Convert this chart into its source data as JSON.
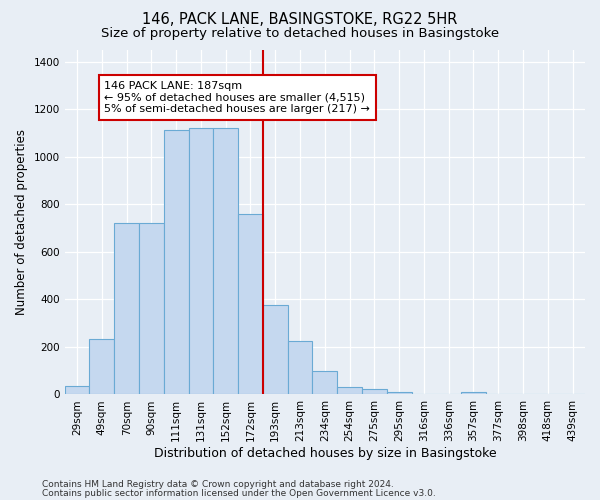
{
  "title": "146, PACK LANE, BASINGSTOKE, RG22 5HR",
  "subtitle": "Size of property relative to detached houses in Basingstoke",
  "xlabel": "Distribution of detached houses by size in Basingstoke",
  "ylabel": "Number of detached properties",
  "bar_labels": [
    "29sqm",
    "49sqm",
    "70sqm",
    "90sqm",
    "111sqm",
    "131sqm",
    "152sqm",
    "172sqm",
    "193sqm",
    "213sqm",
    "234sqm",
    "254sqm",
    "275sqm",
    "295sqm",
    "316sqm",
    "336sqm",
    "357sqm",
    "377sqm",
    "398sqm",
    "418sqm",
    "439sqm"
  ],
  "hist_values": [
    35,
    235,
    720,
    720,
    1115,
    1120,
    1120,
    760,
    375,
    225,
    100,
    30,
    22,
    12,
    0,
    0,
    12,
    0,
    0,
    0,
    0
  ],
  "bar_color": "#c5d8ef",
  "bar_edge_color": "#6aaad4",
  "vline_color": "#cc0000",
  "annotation_text": "146 PACK LANE: 187sqm\n← 95% of detached houses are smaller (4,515)\n5% of semi-detached houses are larger (217) →",
  "annotation_box_color": "white",
  "annotation_box_edge_color": "#cc0000",
  "ylim": [
    0,
    1450
  ],
  "yticks": [
    0,
    200,
    400,
    600,
    800,
    1000,
    1200,
    1400
  ],
  "bg_color": "#e8eef5",
  "footer1": "Contains HM Land Registry data © Crown copyright and database right 2024.",
  "footer2": "Contains public sector information licensed under the Open Government Licence v3.0.",
  "title_fontsize": 10.5,
  "subtitle_fontsize": 9.5,
  "xlabel_fontsize": 9,
  "ylabel_fontsize": 8.5,
  "tick_fontsize": 7.5,
  "annotation_fontsize": 8,
  "footer_fontsize": 6.5,
  "vline_bar_index": 7
}
